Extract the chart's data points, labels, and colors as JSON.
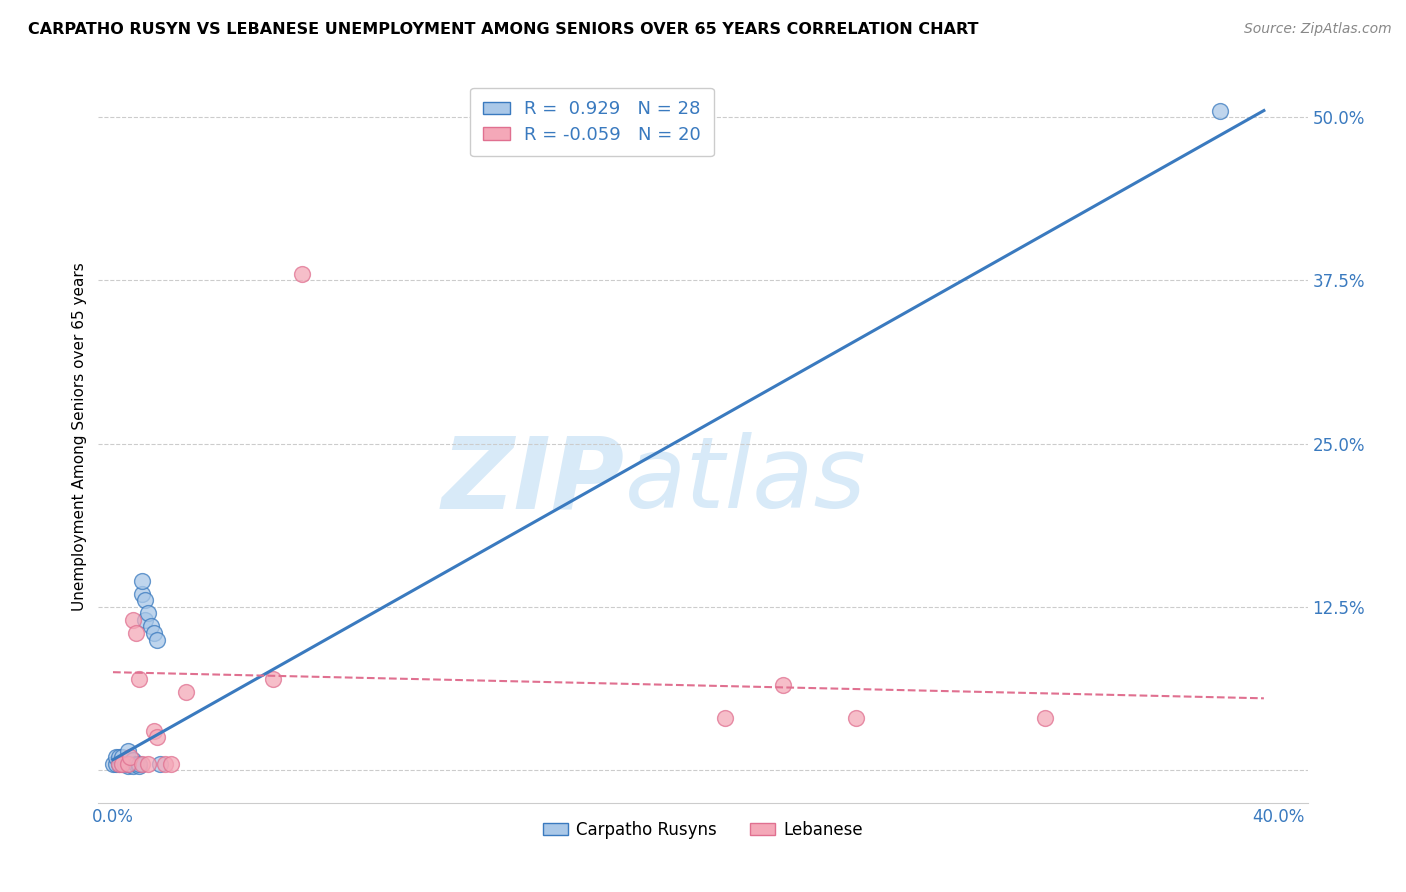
{
  "title": "CARPATHO RUSYN VS LEBANESE UNEMPLOYMENT AMONG SENIORS OVER 65 YEARS CORRELATION CHART",
  "source": "Source: ZipAtlas.com",
  "ylabel": "Unemployment Among Seniors over 65 years",
  "xlim": [
    -0.005,
    0.41
  ],
  "ylim": [
    -0.025,
    0.535
  ],
  "xticks": [
    0.0,
    0.05,
    0.1,
    0.15,
    0.2,
    0.25,
    0.3,
    0.35,
    0.4
  ],
  "yticks": [
    0.0,
    0.125,
    0.25,
    0.375,
    0.5
  ],
  "xtick_labels": [
    "0.0%",
    "",
    "",
    "",
    "",
    "",
    "",
    "",
    "40.0%"
  ],
  "ytick_labels": [
    "",
    "12.5%",
    "25.0%",
    "37.5%",
    "50.0%"
  ],
  "blue_scatter_x": [
    0.0,
    0.001,
    0.001,
    0.002,
    0.002,
    0.003,
    0.003,
    0.004,
    0.005,
    0.005,
    0.005,
    0.005,
    0.006,
    0.007,
    0.007,
    0.008,
    0.009,
    0.009,
    0.01,
    0.01,
    0.011,
    0.011,
    0.012,
    0.013,
    0.014,
    0.015,
    0.016,
    0.38
  ],
  "blue_scatter_y": [
    0.005,
    0.005,
    0.01,
    0.005,
    0.01,
    0.005,
    0.01,
    0.005,
    0.003,
    0.005,
    0.008,
    0.015,
    0.005,
    0.003,
    0.008,
    0.005,
    0.003,
    0.005,
    0.135,
    0.145,
    0.115,
    0.13,
    0.12,
    0.11,
    0.105,
    0.1,
    0.005,
    0.505
  ],
  "pink_scatter_x": [
    0.002,
    0.003,
    0.005,
    0.006,
    0.007,
    0.008,
    0.009,
    0.01,
    0.012,
    0.014,
    0.015,
    0.018,
    0.02,
    0.025,
    0.055,
    0.065,
    0.21,
    0.23,
    0.255,
    0.32
  ],
  "pink_scatter_y": [
    0.005,
    0.005,
    0.005,
    0.01,
    0.115,
    0.105,
    0.07,
    0.005,
    0.005,
    0.03,
    0.025,
    0.005,
    0.005,
    0.06,
    0.07,
    0.38,
    0.04,
    0.065,
    0.04,
    0.04
  ],
  "blue_line_x": [
    0.0,
    0.395
  ],
  "blue_line_y": [
    0.008,
    0.505
  ],
  "pink_line_x": [
    0.0,
    0.395
  ],
  "pink_line_y": [
    0.075,
    0.055
  ],
  "blue_color": "#3a7abf",
  "pink_color": "#e07090",
  "blue_scatter_color": "#aac8e8",
  "pink_scatter_color": "#f4a8b8",
  "watermark_zip": "ZIP",
  "watermark_atlas": "atlas",
  "watermark_color": "#d8eaf8",
  "legend_label_blue": "Carpatho Rusyns",
  "legend_label_pink": "Lebanese",
  "r_blue": "0.929",
  "n_blue": "28",
  "r_pink": "-0.059",
  "n_pink": "20"
}
